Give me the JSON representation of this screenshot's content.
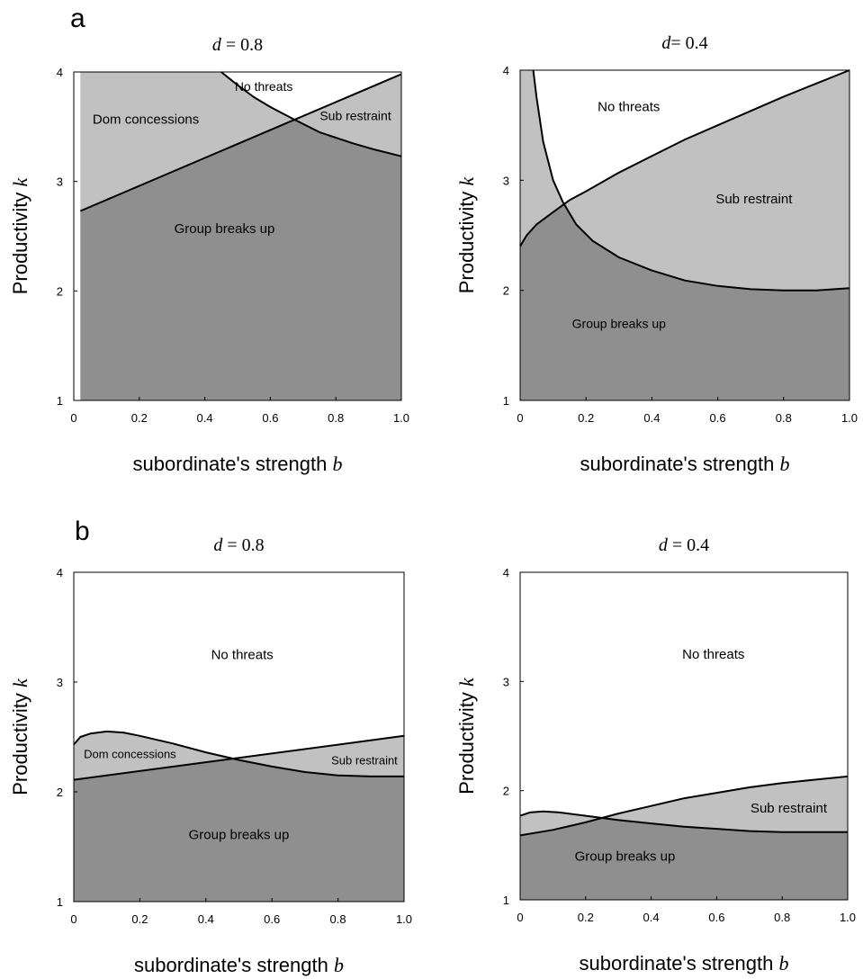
{
  "panels": [
    {
      "letter": "a"
    },
    {
      "letter": "b"
    }
  ],
  "colors": {
    "dark": "#8f8f8f",
    "light": "#c1c1c1",
    "white": "#ffffff",
    "line": "#000000"
  },
  "chart_data": [
    {
      "type": "area",
      "panel": "a",
      "title_var": "d",
      "title_rest": " = 0.8",
      "xlabel_text": "subordinate's strength ",
      "xlabel_var": "b",
      "ylabel_text": "Productivity ",
      "ylabel_var": "k",
      "xlim": [
        0,
        1.0
      ],
      "ylim": [
        1,
        4
      ],
      "xticks": [
        "0",
        "0.2",
        "0.4",
        "0.6",
        "0.8",
        "1.0"
      ],
      "yticks": [
        "1",
        "2",
        "3",
        "4"
      ],
      "series": [
        {
          "x": [
            0.02,
            1.0
          ],
          "y": [
            2.73,
            3.98
          ]
        },
        {
          "x": [
            0.45,
            0.5,
            0.55,
            0.6,
            0.67,
            0.75,
            0.85,
            0.92,
            1.0
          ],
          "y": [
            4.0,
            3.88,
            3.77,
            3.68,
            3.57,
            3.45,
            3.35,
            3.29,
            3.23
          ]
        }
      ],
      "regions": [
        {
          "label": "No threats",
          "x": 0.58,
          "y": 3.87,
          "size": 14
        },
        {
          "label": "Dom concessions",
          "x": 0.22,
          "y": 3.57,
          "size": 15
        },
        {
          "label": "Sub restraint",
          "x": 0.86,
          "y": 3.6,
          "size": 14
        },
        {
          "label": "Group breaks up",
          "x": 0.46,
          "y": 2.57,
          "size": 15
        }
      ]
    },
    {
      "type": "area",
      "panel": "a",
      "title_var": "d",
      "title_rest": "= 0.4",
      "xlabel_text": "subordinate's strength ",
      "xlabel_var": "b",
      "ylabel_text": "Productivity ",
      "ylabel_var": "k",
      "xlim": [
        0,
        1.0
      ],
      "ylim": [
        1,
        4
      ],
      "xticks": [
        "0",
        "0.2",
        "0.4",
        "0.6",
        "0.8",
        "1.0"
      ],
      "yticks": [
        "1",
        "2",
        "3",
        "4"
      ],
      "series": [
        {
          "x": [
            0.0,
            0.02,
            0.05,
            0.1,
            0.15,
            0.2,
            0.3,
            0.4,
            0.5,
            0.6,
            0.7,
            0.8,
            0.9,
            1.0
          ],
          "y": [
            2.4,
            2.5,
            2.6,
            2.71,
            2.82,
            2.9,
            3.07,
            3.22,
            3.37,
            3.5,
            3.63,
            3.76,
            3.88,
            4.0
          ]
        },
        {
          "x": [
            0.04,
            0.05,
            0.07,
            0.1,
            0.13,
            0.17,
            0.22,
            0.3,
            0.4,
            0.5,
            0.6,
            0.7,
            0.8,
            0.9,
            1.0
          ],
          "y": [
            4.0,
            3.75,
            3.35,
            3.0,
            2.8,
            2.6,
            2.45,
            2.3,
            2.18,
            2.09,
            2.04,
            2.01,
            2.0,
            2.0,
            2.02
          ]
        }
      ],
      "regions": [
        {
          "label": "No threats",
          "x": 0.33,
          "y": 3.67,
          "size": 15
        },
        {
          "label": "Sub restraint",
          "x": 0.71,
          "y": 2.83,
          "size": 15
        },
        {
          "label": "Group breaks up",
          "x": 0.3,
          "y": 1.7,
          "size": 14
        }
      ]
    },
    {
      "type": "area",
      "panel": "b",
      "title_var": "d",
      "title_rest": " = 0.8",
      "xlabel_text": "subordinate's strength ",
      "xlabel_var": "b",
      "ylabel_text": "Productivity ",
      "ylabel_var": "k",
      "xlim": [
        0,
        1.0
      ],
      "ylim": [
        1,
        4
      ],
      "xticks": [
        "0",
        "0.2",
        "0.4",
        "0.6",
        "0.8",
        "1.0"
      ],
      "yticks": [
        "1",
        "2",
        "3",
        "4"
      ],
      "series": [
        {
          "x": [
            0.0,
            1.0
          ],
          "y": [
            2.11,
            2.51
          ]
        },
        {
          "x": [
            0.0,
            0.02,
            0.05,
            0.1,
            0.15,
            0.2,
            0.3,
            0.4,
            0.5,
            0.6,
            0.7,
            0.8,
            0.9,
            1.0
          ],
          "y": [
            2.43,
            2.5,
            2.53,
            2.55,
            2.54,
            2.51,
            2.44,
            2.36,
            2.29,
            2.23,
            2.18,
            2.15,
            2.14,
            2.14
          ]
        }
      ],
      "regions": [
        {
          "label": "No threats",
          "x": 0.51,
          "y": 3.25,
          "size": 15
        },
        {
          "label": "Dom concessions",
          "x": 0.17,
          "y": 2.35,
          "size": 13
        },
        {
          "label": "Sub restraint",
          "x": 0.88,
          "y": 2.29,
          "size": 13
        },
        {
          "label": "Group breaks up",
          "x": 0.5,
          "y": 1.61,
          "size": 15
        }
      ]
    },
    {
      "type": "area",
      "panel": "b",
      "title_var": "d",
      "title_rest": " = 0.4",
      "xlabel_text": "subordinate's strength ",
      "xlabel_var": "b",
      "ylabel_text": "Productivity ",
      "ylabel_var": "k",
      "xlim": [
        0,
        1.0
      ],
      "ylim": [
        1,
        4
      ],
      "xticks": [
        "0",
        "0.2",
        "0.4",
        "0.6",
        "0.8",
        "1.0"
      ],
      "yticks": [
        "1",
        "2",
        "3",
        "4"
      ],
      "series": [
        {
          "x": [
            0.0,
            0.1,
            0.2,
            0.3,
            0.4,
            0.5,
            0.6,
            0.7,
            0.8,
            0.9,
            1.0
          ],
          "y": [
            1.59,
            1.64,
            1.71,
            1.79,
            1.86,
            1.93,
            1.98,
            2.03,
            2.07,
            2.1,
            2.13
          ]
        },
        {
          "x": [
            0.0,
            0.03,
            0.07,
            0.12,
            0.2,
            0.3,
            0.4,
            0.5,
            0.6,
            0.7,
            0.8,
            0.9,
            1.0
          ],
          "y": [
            1.77,
            1.8,
            1.81,
            1.8,
            1.77,
            1.73,
            1.7,
            1.67,
            1.65,
            1.63,
            1.62,
            1.62,
            1.62
          ]
        }
      ],
      "regions": [
        {
          "label": "No threats",
          "x": 0.59,
          "y": 3.25,
          "size": 15
        },
        {
          "label": "Sub restraint",
          "x": 0.82,
          "y": 1.84,
          "size": 15
        },
        {
          "label": "Group breaks up",
          "x": 0.32,
          "y": 1.4,
          "size": 15
        }
      ]
    }
  ]
}
